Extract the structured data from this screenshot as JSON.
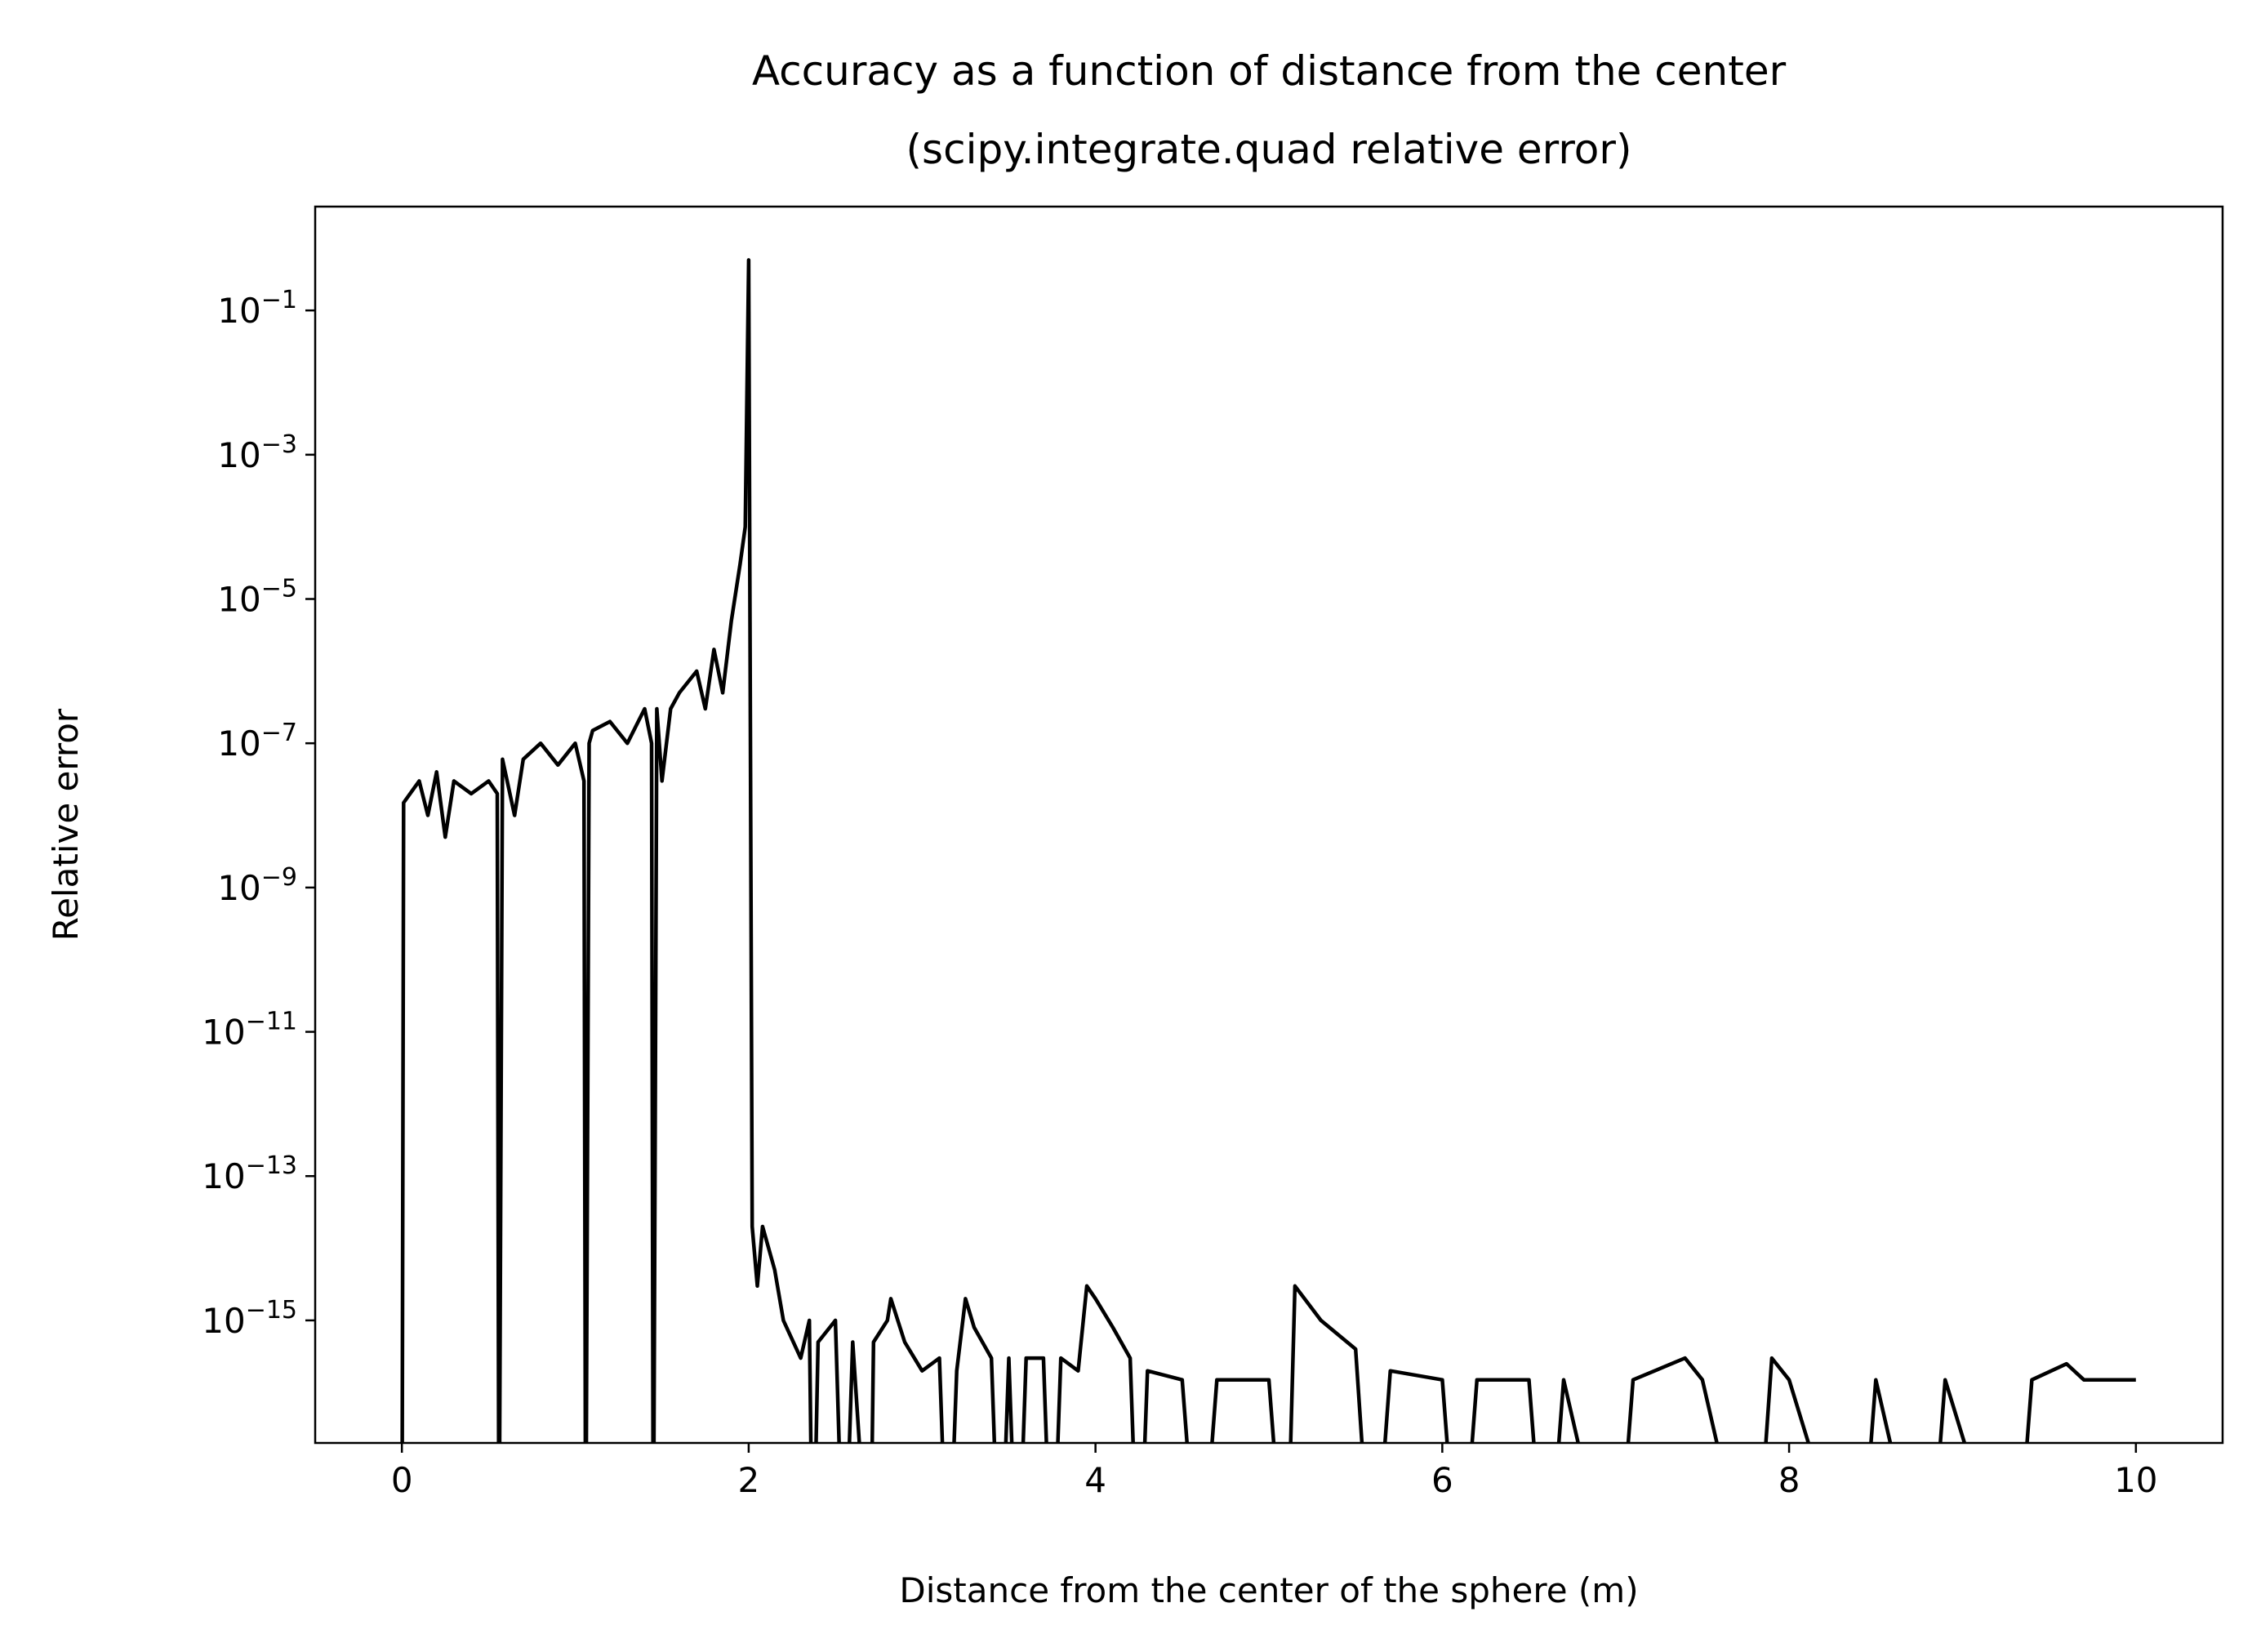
{
  "chart_data": {
    "type": "line",
    "title": "Accuracy as a function of distance from the center",
    "subtitle": "(scipy.integrate.quad relative error)",
    "x_label": "Distance from the center of the sphere (m)",
    "y_label": "Relative error",
    "log_y": true,
    "color": "#000000",
    "xlim": [
      -0.5,
      10.5
    ],
    "xticks": [
      0,
      2,
      4,
      6,
      8,
      10
    ],
    "ylim": [
      2e-17,
      2.75
    ],
    "yticks": [
      {
        "value": 0.1,
        "label": "10−1"
      },
      {
        "value": 0.001,
        "label": "10−3"
      },
      {
        "value": 1e-05,
        "label": "10−5"
      },
      {
        "value": 1e-07,
        "label": "10−7"
      },
      {
        "value": 1e-09,
        "label": "10−9"
      },
      {
        "value": 1e-11,
        "label": "10−11"
      },
      {
        "value": 1e-13,
        "label": "10−13"
      },
      {
        "value": 1e-15,
        "label": "10−15"
      }
    ],
    "x": [
      0,
      0.01,
      0.1,
      0.15,
      0.2,
      0.25,
      0.3,
      0.4,
      0.5,
      0.55,
      0.56,
      0.58,
      0.65,
      0.7,
      0.8,
      0.9,
      1.0,
      1.05,
      1.06,
      1.08,
      1.1,
      1.2,
      1.3,
      1.4,
      1.44,
      1.45,
      1.47,
      1.5,
      1.55,
      1.6,
      1.7,
      1.75,
      1.8,
      1.85,
      1.9,
      1.95,
      1.98,
      2.0,
      2.02,
      2.05,
      2.08,
      2.15,
      2.2,
      2.3,
      2.35,
      2.37,
      2.4,
      2.5,
      2.55,
      2.6,
      2.7,
      2.72,
      2.8,
      2.82,
      2.9,
      3.0,
      3.1,
      3.15,
      3.2,
      3.25,
      3.3,
      3.4,
      3.45,
      3.5,
      3.55,
      3.6,
      3.7,
      3.75,
      3.8,
      3.9,
      3.95,
      4.0,
      4.1,
      4.2,
      4.25,
      4.3,
      4.5,
      4.6,
      4.7,
      5.0,
      5.1,
      5.15,
      5.3,
      5.5,
      5.6,
      5.7,
      6.0,
      6.1,
      6.2,
      6.5,
      6.6,
      6.7,
      7.0,
      7.1,
      7.4,
      7.5,
      7.8,
      7.9,
      8.0,
      8.4,
      8.5,
      8.8,
      8.9,
      9.3,
      9.4,
      9.6,
      9.7,
      10.0
    ],
    "values": [
      0,
      1.5e-08,
      3e-08,
      1e-08,
      4e-08,
      5e-09,
      3e-08,
      2e-08,
      3e-08,
      2e-08,
      0,
      6e-08,
      1e-08,
      6e-08,
      1e-07,
      5e-08,
      1e-07,
      3e-08,
      0,
      1e-07,
      1.5e-07,
      2e-07,
      1e-07,
      3e-07,
      1e-07,
      0,
      3e-07,
      3e-08,
      3e-07,
      5e-07,
      1e-06,
      3e-07,
      2e-06,
      5e-07,
      5e-06,
      3e-05,
      0.0001,
      0.5,
      2e-14,
      3e-15,
      2e-14,
      5e-15,
      1e-15,
      3e-16,
      1e-15,
      0,
      5e-16,
      1e-15,
      0,
      5e-16,
      0,
      5e-16,
      1e-15,
      2e-15,
      5e-16,
      2e-16,
      3e-16,
      0,
      2e-16,
      2e-15,
      8e-16,
      3e-16,
      0,
      3e-16,
      0,
      3e-16,
      3e-16,
      0,
      3e-16,
      2e-16,
      3e-15,
      2e-15,
      8e-16,
      3e-16,
      0,
      2e-16,
      1.5e-16,
      0,
      1.5e-16,
      1.5e-16,
      0,
      3e-15,
      1e-15,
      4e-16,
      0,
      2e-16,
      1.5e-16,
      0,
      1.5e-16,
      1.5e-16,
      0,
      1.5e-16,
      0,
      1.5e-16,
      3e-16,
      1.5e-16,
      0,
      3e-16,
      1.5e-16,
      0,
      1.5e-16,
      0,
      1.5e-16,
      0,
      1.5e-16,
      2.5e-16,
      1.5e-16,
      1.5e-16
    ]
  }
}
